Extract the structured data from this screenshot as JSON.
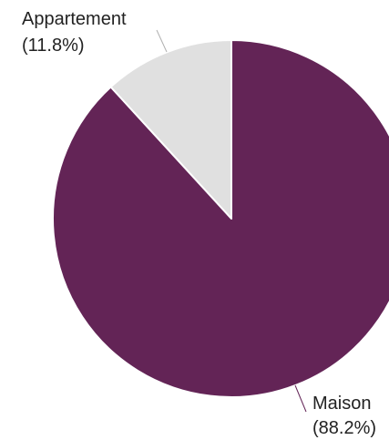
{
  "chart_data": {
    "type": "pie",
    "slices": [
      {
        "label": "Maison",
        "percent_label": "(88.2%)",
        "value": 88.2,
        "color": "#632456"
      },
      {
        "label": "Appartement",
        "percent_label": "(11.8%)",
        "value": 11.8,
        "color": "#e0e0e0"
      }
    ],
    "start": "top",
    "direction": "clockwise",
    "leader_line_color": "#b0b0b0",
    "leader_line_color_dark": "#632456"
  }
}
